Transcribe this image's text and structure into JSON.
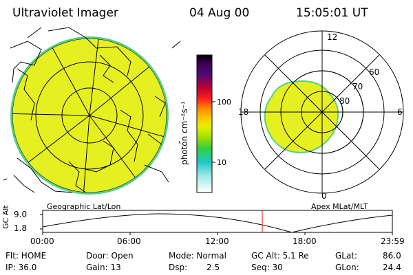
{
  "header": {
    "instrument": "Ultraviolet Imager",
    "date": "04 Aug 00",
    "time": "15:05:01 UT"
  },
  "colorbar": {
    "unit_label": "photon cm⁻²s⁻¹",
    "ticks": [
      "100",
      "10"
    ],
    "colors": [
      "#000000",
      "#4b0066",
      "#3a1d8a",
      "#1f4fd0",
      "#3aa0ff",
      "#2fd0d0",
      "#4fe070",
      "#a8e000",
      "#e8e800",
      "#ffb000",
      "#ff5000",
      "#d80000",
      "#ffffff"
    ]
  },
  "geo_map": {
    "label": "Geographic Lat/Lon",
    "fill_color": "#e6f020",
    "edge_color": "#52d08a"
  },
  "apex_map": {
    "label": "Apex MLat/MLT",
    "mlt_labels": {
      "top": "12",
      "left": "18",
      "right": "6",
      "bottom": "0"
    },
    "lat_labels": [
      "60",
      "70",
      "80"
    ]
  },
  "orbit_plot": {
    "ylabel": "GC Alt",
    "yticks": [
      "9.0",
      "1.8"
    ],
    "xticks": [
      "00:00",
      "06:00",
      "12:00",
      "18:00",
      "23:59"
    ],
    "marker_time": "15:05",
    "marker_color": "#ff0000"
  },
  "status": {
    "flt": "Flt: HOME",
    "ip": "IP: 36.0",
    "door": "Door: Open",
    "gain": "Gain: 13",
    "mode": "Mode: Normal",
    "dsp_label": "Dsp:",
    "dsp_value": "2.5",
    "gc_alt": "GC Alt: 5.1 Re",
    "seq": "Seq: 30",
    "glat_label": "GLat:",
    "glat_value": "86.0",
    "glon_label": "GLon:",
    "glon_value": "24.4"
  }
}
